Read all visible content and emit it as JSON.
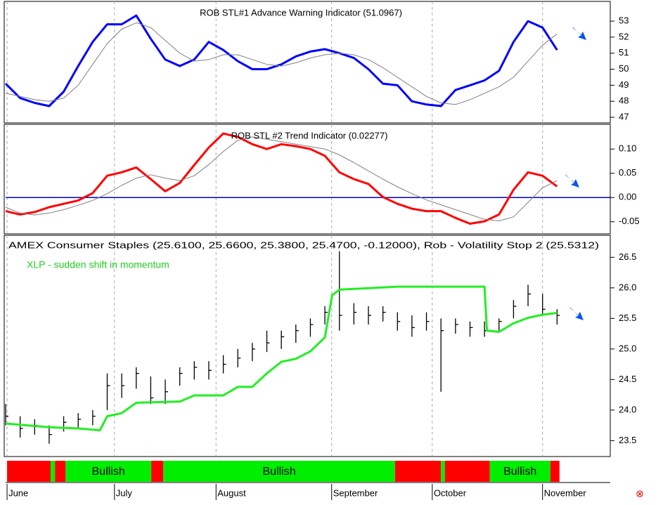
{
  "chart_data": [
    {
      "type": "line",
      "title": "ROB STL#1 Advance Warning Indicator (51.0967)",
      "xlim": [
        0,
        125
      ],
      "ylim": [
        46.65,
        54.23
      ],
      "yticks": [
        47,
        48,
        49,
        50,
        51,
        52,
        53
      ],
      "x": [
        0,
        3,
        6,
        9,
        12,
        15,
        18,
        21,
        24,
        27,
        30,
        33,
        36,
        39,
        42,
        45,
        48,
        51,
        54,
        57,
        60,
        63,
        66,
        69,
        72,
        75,
        78,
        81,
        84,
        87,
        90,
        93,
        96,
        99,
        102,
        105,
        108,
        111,
        114
      ],
      "series": [
        {
          "color": "#0000ff",
          "width": 3,
          "values": [
            49.1,
            48.2,
            47.9,
            47.7,
            48.6,
            50.2,
            51.7,
            52.8,
            52.8,
            53.35,
            51.9,
            50.6,
            50.2,
            50.6,
            51.7,
            51.2,
            50.5,
            50.0,
            50.0,
            50.3,
            50.8,
            51.1,
            51.25,
            51.0,
            50.7,
            50.0,
            49.1,
            49.0,
            48.0,
            47.8,
            47.7,
            48.7,
            49.0,
            49.3,
            49.9,
            51.7,
            53.0,
            52.6,
            51.2
          ]
        },
        {
          "color": "#808080",
          "width": 1,
          "values": [
            48.5,
            48.3,
            48.1,
            48.0,
            48.2,
            49.0,
            50.3,
            51.6,
            52.5,
            52.9,
            52.6,
            51.8,
            51.0,
            50.5,
            50.6,
            50.9,
            50.9,
            50.6,
            50.3,
            50.2,
            50.4,
            50.7,
            50.9,
            51.0,
            50.9,
            50.6,
            50.1,
            49.5,
            48.9,
            48.3,
            47.9,
            47.8,
            48.1,
            48.5,
            48.9,
            49.5,
            50.5,
            51.5,
            52.2
          ]
        }
      ]
    },
    {
      "type": "line",
      "title": "ROB STL #2 Trend Indicator (0.02277)",
      "xlim": [
        0,
        125
      ],
      "ylim": [
        -0.075,
        0.151
      ],
      "yticks": [
        {
          "value": 0.1,
          "label": "0.10"
        },
        {
          "value": 0.05,
          "label": "0.05"
        },
        {
          "value": 0,
          "label": "0.00"
        },
        {
          "value": -0.05,
          "label": "-0.05"
        }
      ],
      "reference_line": 0,
      "reference_color": "#0000c0",
      "x": [
        0,
        3,
        6,
        9,
        12,
        15,
        18,
        21,
        24,
        27,
        30,
        33,
        36,
        39,
        42,
        45,
        48,
        51,
        54,
        57,
        60,
        63,
        66,
        69,
        72,
        75,
        78,
        81,
        84,
        87,
        90,
        93,
        96,
        99,
        102,
        105,
        108,
        111,
        114
      ],
      "series": [
        {
          "color": "#ff0000",
          "width": 3,
          "values": [
            -0.028,
            -0.035,
            -0.03,
            -0.02,
            -0.013,
            -0.006,
            0.009,
            0.045,
            0.052,
            0.062,
            0.038,
            0.013,
            0.03,
            0.067,
            0.103,
            0.132,
            0.125,
            0.11,
            0.1,
            0.11,
            0.106,
            0.1,
            0.086,
            0.052,
            0.038,
            0.028,
            0.001,
            -0.013,
            -0.023,
            -0.028,
            -0.028,
            -0.042,
            -0.054,
            -0.049,
            -0.035,
            0.016,
            0.052,
            0.045,
            0.023
          ]
        },
        {
          "color": "#808080",
          "width": 1,
          "values": [
            -0.02,
            -0.032,
            -0.036,
            -0.032,
            -0.025,
            -0.016,
            -0.006,
            0.008,
            0.025,
            0.04,
            0.047,
            0.04,
            0.035,
            0.045,
            0.068,
            0.095,
            0.118,
            0.125,
            0.12,
            0.115,
            0.11,
            0.105,
            0.1,
            0.088,
            0.072,
            0.055,
            0.038,
            0.022,
            0.008,
            -0.005,
            -0.015,
            -0.025,
            -0.035,
            -0.045,
            -0.048,
            -0.04,
            -0.01,
            0.02,
            0.035
          ]
        }
      ]
    },
    {
      "type": "ohlc",
      "title": "AMEX Consumer Staples (25.6100, 25.6600, 25.3800, 25.4700, -0.12000), Rob - Volatility Stop 2 (25.5312)",
      "annotation": "XLP - sudden shift in momentum",
      "annotation_color": "#22cc22",
      "xlim": [
        0,
        125
      ],
      "ylim": [
        23.24,
        26.86
      ],
      "yticks": [
        {
          "value": 26.5,
          "label": "26.5"
        },
        {
          "value": 26,
          "label": "26.0"
        },
        {
          "value": 25.5,
          "label": "25.5"
        },
        {
          "value": 25,
          "label": "25.0"
        },
        {
          "value": 24.5,
          "label": "24.5"
        },
        {
          "value": 24,
          "label": "24.0"
        },
        {
          "value": 23.5,
          "label": "23.5"
        }
      ],
      "bars": {
        "color": "#000000",
        "x": [
          0,
          3,
          6,
          9,
          12,
          15,
          18,
          21,
          24,
          27,
          30,
          33,
          36,
          39,
          42,
          45,
          48,
          51,
          54,
          57,
          60,
          63,
          66,
          69,
          72,
          75,
          78,
          81,
          84,
          87,
          90,
          93,
          96,
          99,
          102,
          105,
          108,
          111,
          114
        ],
        "high": [
          24.1,
          23.9,
          23.85,
          23.75,
          23.9,
          23.95,
          24.0,
          24.6,
          24.6,
          24.7,
          24.55,
          24.5,
          24.7,
          24.8,
          24.8,
          24.9,
          25.0,
          25.1,
          25.3,
          25.3,
          25.4,
          25.5,
          25.7,
          26.6,
          25.75,
          25.7,
          25.7,
          25.6,
          25.55,
          25.6,
          25.5,
          25.5,
          25.45,
          25.45,
          25.5,
          25.8,
          26.05,
          25.9,
          25.65
        ],
        "low": [
          23.75,
          23.55,
          23.6,
          23.45,
          23.65,
          23.7,
          23.75,
          24.0,
          24.2,
          24.35,
          24.1,
          24.1,
          24.4,
          24.5,
          24.5,
          24.6,
          24.7,
          24.8,
          24.95,
          25.0,
          25.1,
          25.2,
          25.4,
          25.3,
          25.4,
          25.4,
          25.45,
          25.3,
          25.2,
          25.3,
          24.3,
          25.25,
          25.2,
          25.2,
          25.3,
          25.5,
          25.7,
          25.55,
          25.4
        ],
        "close": [
          23.9,
          23.7,
          23.75,
          23.6,
          23.8,
          23.85,
          23.9,
          24.4,
          24.4,
          24.6,
          24.2,
          24.3,
          24.6,
          24.7,
          24.65,
          24.75,
          24.85,
          25.0,
          25.1,
          25.2,
          25.3,
          25.4,
          25.6,
          25.55,
          25.6,
          25.55,
          25.6,
          25.45,
          25.35,
          25.45,
          25.3,
          25.4,
          25.35,
          25.3,
          25.45,
          25.7,
          25.9,
          25.65,
          25.55
        ]
      },
      "series": [
        {
          "color": "#22ee22",
          "width": 3,
          "x": [
            0,
            9,
            15,
            19.5,
            21,
            24,
            27,
            36,
            39,
            45,
            48,
            51,
            54,
            57,
            60,
            63,
            66,
            67.5,
            69,
            81,
            99,
            99.5,
            102,
            105,
            108,
            111,
            114
          ],
          "values": [
            23.78,
            23.72,
            23.7,
            23.67,
            23.9,
            23.95,
            24.12,
            24.14,
            24.24,
            24.24,
            24.38,
            24.38,
            24.6,
            24.79,
            24.84,
            24.96,
            25.19,
            25.88,
            25.97,
            26.02,
            26.02,
            25.3,
            25.28,
            25.42,
            25.51,
            25.56,
            25.59
          ]
        }
      ]
    },
    {
      "type": "band",
      "xlim": [
        0,
        125
      ],
      "segments": [
        {
          "start": 0.3,
          "end": 9.3,
          "color": "#ff0000"
        },
        {
          "start": 9.3,
          "end": 10.2,
          "color": "#00ee00"
        },
        {
          "start": 10.2,
          "end": 12.4,
          "color": "#ff0000"
        },
        {
          "start": 12.4,
          "end": 30.1,
          "color": "#00ee00",
          "label": "Bullish"
        },
        {
          "start": 30.1,
          "end": 32.6,
          "color": "#ff0000"
        },
        {
          "start": 32.6,
          "end": 80.5,
          "color": "#00ee00",
          "label": "Bullish"
        },
        {
          "start": 80.5,
          "end": 90,
          "color": "#ff0000"
        },
        {
          "start": 90,
          "end": 90.8,
          "color": "#00ee00"
        },
        {
          "start": 90.8,
          "end": 100.1,
          "color": "#ff0000"
        },
        {
          "start": 100.1,
          "end": 112.6,
          "color": "#00ee00",
          "label": "Bullish"
        },
        {
          "start": 112.6,
          "end": 114.5,
          "color": "#ff0000"
        }
      ],
      "xticks": [
        {
          "value": 0.3,
          "label": "June"
        },
        {
          "value": 22.5,
          "label": "July"
        },
        {
          "value": 43.5,
          "label": "August"
        },
        {
          "value": 67.4,
          "label": "September"
        },
        {
          "value": 88.2,
          "label": "October"
        },
        {
          "value": 111,
          "label": "November"
        }
      ]
    }
  ]
}
